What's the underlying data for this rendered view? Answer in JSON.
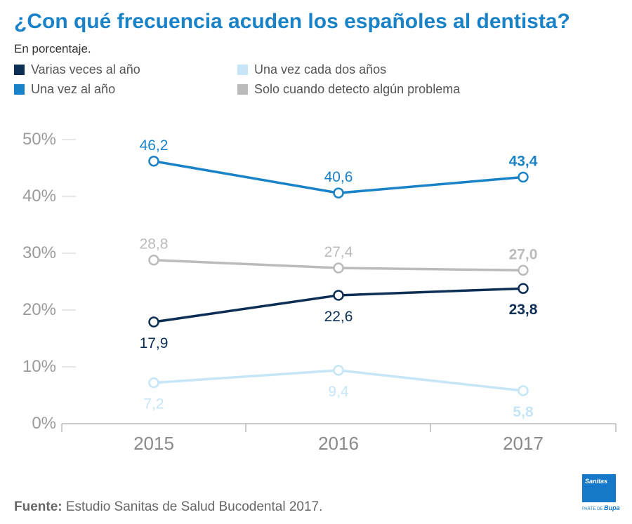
{
  "title": "¿Con qué frecuencia acuden los españoles al dentista?",
  "subtitle": "En porcentaje.",
  "source": {
    "label": "Fuente:",
    "text": " Estudio Sanitas de Salud Bucodental 2017."
  },
  "logo": {
    "name": "Sanitas",
    "sub": "PARTE DE",
    "parent": "Bupa"
  },
  "colors": {
    "varias": "#0d2f55",
    "una_vez": "#1a82c7",
    "dos_anos": "#c6e6f7",
    "solo": "#bbbbbb",
    "axis": "#999999",
    "tick_text": "#9a9a9a"
  },
  "chart_data": {
    "type": "line",
    "title": "¿Con qué frecuencia acuden los españoles al dentista?",
    "subtitle": "En porcentaje.",
    "categories": [
      "2015",
      "2016",
      "2017"
    ],
    "ylim": [
      0,
      50
    ],
    "yticks": [
      0,
      10,
      20,
      30,
      40,
      50
    ],
    "ytick_labels": [
      "0%",
      "10%",
      "20%",
      "30%",
      "40%",
      "50%"
    ],
    "grid": false,
    "legend_position": "top-left",
    "series": [
      {
        "name": "Varias veces al año",
        "values": [
          17.9,
          22.6,
          23.8
        ],
        "labels": [
          "17,9",
          "22,6",
          "23,8"
        ],
        "color": "#0d2f55"
      },
      {
        "name": "Una vez al año",
        "values": [
          46.2,
          40.6,
          43.4
        ],
        "labels": [
          "46,2",
          "40,6",
          "43,4"
        ],
        "color": "#1a82c7"
      },
      {
        "name": "Una vez cada dos años",
        "values": [
          7.2,
          9.4,
          5.8
        ],
        "labels": [
          "7,2",
          "9,4",
          "5,8"
        ],
        "color": "#c6e6f7"
      },
      {
        "name": "Solo cuando detecto algún problema",
        "values": [
          28.8,
          27.4,
          27.0
        ],
        "labels": [
          "28,8",
          "27,4",
          "27,0"
        ],
        "color": "#bbbbbb"
      }
    ]
  }
}
